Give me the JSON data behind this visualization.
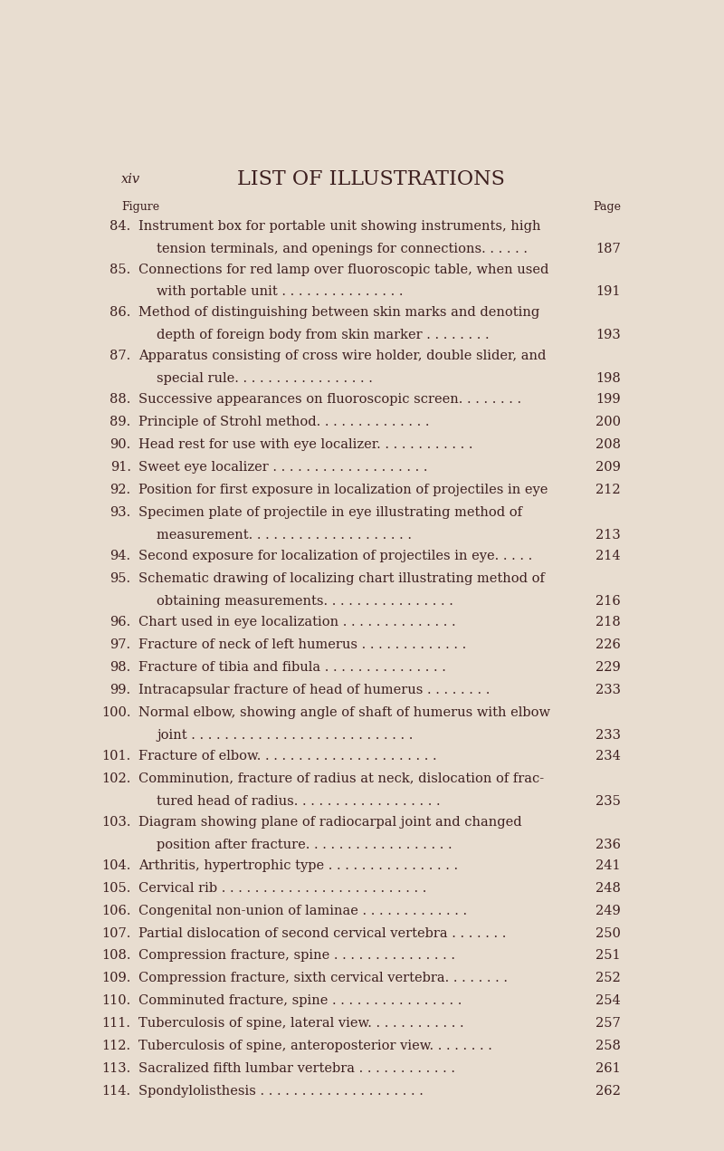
{
  "bg_color": "#e8ddd0",
  "text_color": "#3d1f1f",
  "page_width": 8.0,
  "page_height": 12.71,
  "title": "LIST OF ILLUSTRATIONS",
  "xiv_label": "xiv",
  "header_figure": "Figure",
  "header_page": "Page",
  "entries": [
    {
      "num": "84.",
      "multiline": true,
      "line1": "Instrument box for portable unit showing instruments, high",
      "line2": "tension terminals, and openings for connections.",
      "dots2": ". . . . .",
      "page": 187
    },
    {
      "num": "85.",
      "multiline": true,
      "line1": "Connections for red lamp over fluoroscopic table, when used",
      "line2": "with portable unit",
      "dots2": ". . . . . . . . . . . . . . .",
      "page": 191
    },
    {
      "num": "86.",
      "multiline": true,
      "line1": "Method of distinguishing between skin marks and denoting",
      "line2": "depth of foreign body from skin marker",
      "dots2": ". . . . . . . .",
      "page": 193
    },
    {
      "num": "87.",
      "multiline": true,
      "line1": "Apparatus consisting of cross wire holder, double slider, and",
      "line2": "special rule.",
      "dots2": ". . . . . . . . . . . . . . . .",
      "page": 198
    },
    {
      "num": "88.",
      "multiline": false,
      "line1": "Successive appearances on fluoroscopic screen.",
      "dots1": ". . . . . . .",
      "page": 199
    },
    {
      "num": "89.",
      "multiline": false,
      "line1": "Principle of Strohl method.",
      "dots1": ". . . . . . . . . . . . .",
      "page": 200
    },
    {
      "num": "90.",
      "multiline": false,
      "line1": "Head rest for use with eye localizer.",
      "dots1": ". . . . . . . . . . .",
      "page": 208
    },
    {
      "num": "91.",
      "multiline": false,
      "line1": "Sweet eye localizer",
      "dots1": ". . . . . . . . . . . . . . . . . . .",
      "page": 209
    },
    {
      "num": "92.",
      "multiline": false,
      "line1": "Position for first exposure in localization of projectiles in eye",
      "dots1": "",
      "page": 212
    },
    {
      "num": "93.",
      "multiline": true,
      "line1": "Specimen plate of projectile in eye illustrating method of",
      "line2": "measurement.",
      "dots2": ". . . . . . . . . . . . . . . . . . .",
      "page": 213
    },
    {
      "num": "94.",
      "multiline": false,
      "line1": "Second exposure for localization of projectiles in eye.",
      "dots1": ". . . .",
      "page": 214
    },
    {
      "num": "95.",
      "multiline": true,
      "line1": "Schematic drawing of localizing chart illustrating method of",
      "line2": "obtaining measurements.",
      "dots2": ". . . . . . . . . . . . . . .",
      "page": 216
    },
    {
      "num": "96.",
      "multiline": false,
      "line1": "Chart used in eye localization",
      "dots1": ". . . . . . . . . . . . . .",
      "page": 218
    },
    {
      "num": "97.",
      "multiline": false,
      "line1": "Fracture of neck of left humerus",
      "dots1": ". . . . . . . . . . . . .",
      "page": 226
    },
    {
      "num": "98.",
      "multiline": false,
      "line1": "Fracture of tibia and fibula",
      "dots1": ". . . . . . . . . . . . . . .",
      "page": 229
    },
    {
      "num": "99.",
      "multiline": false,
      "line1": "Intracapsular fracture of head of humerus",
      "dots1": ". . . . . . . .",
      "page": 233
    },
    {
      "num": "100.",
      "multiline": true,
      "line1": "Normal elbow, showing angle of shaft of humerus with elbow",
      "line2": "joint",
      "dots2": ". . . . . . . . . . . . . . . . . . . . . . . . . . .",
      "page": 233
    },
    {
      "num": "101.",
      "multiline": false,
      "line1": "Fracture of elbow.",
      "dots1": ". . . . . . . . . . . . . . . . . . . . .",
      "page": 234
    },
    {
      "num": "102.",
      "multiline": true,
      "line1": "Comminution, fracture of radius at neck, dislocation of frac-",
      "line2": "tured head of radius.",
      "dots2": ". . . . . . . . . . . . . . . . .",
      "page": 235
    },
    {
      "num": "103.",
      "multiline": true,
      "line1": "Diagram showing plane of radiocarpal joint and changed",
      "line2": "position after fracture.",
      "dots2": ". . . . . . . . . . . . . . . . .",
      "page": 236
    },
    {
      "num": "104.",
      "multiline": false,
      "line1": "Arthritis, hypertrophic type",
      "dots1": ". . . . . . . . . . . . . . . .",
      "page": 241
    },
    {
      "num": "105.",
      "multiline": false,
      "line1": "Cervical rib",
      "dots1": ". . . . . . . . . . . . . . . . . . . . . . . . .",
      "page": 248
    },
    {
      "num": "106.",
      "multiline": false,
      "line1": "Congenital non-union of laminae",
      "dots1": ". . . . . . . . . . . . .",
      "page": 249
    },
    {
      "num": "107.",
      "multiline": false,
      "line1": "Partial dislocation of second cervical vertebra",
      "dots1": ". . . . . . .",
      "page": 250
    },
    {
      "num": "108.",
      "multiline": false,
      "line1": "Compression fracture, spine",
      "dots1": ". . . . . . . . . . . . . . .",
      "page": 251
    },
    {
      "num": "109.",
      "multiline": false,
      "line1": "Compression fracture, sixth cervical vertebra.",
      "dots1": ". . . . . . .",
      "page": 252
    },
    {
      "num": "110.",
      "multiline": false,
      "line1": "Comminuted fracture, spine",
      "dots1": ". . . . . . . . . . . . . . . .",
      "page": 254
    },
    {
      "num": "111.",
      "multiline": false,
      "line1": "Tuberculosis of spine, lateral view.",
      "dots1": ". . . . . . . . . . .",
      "page": 257
    },
    {
      "num": "112.",
      "multiline": false,
      "line1": "Tuberculosis of spine, anteroposterior view.",
      "dots1": ". . . . . . .",
      "page": 258
    },
    {
      "num": "113.",
      "multiline": false,
      "line1": "Sacralized fifth lumbar vertebra",
      "dots1": ". . . . . . . . . . . .",
      "page": 261
    },
    {
      "num": "114.",
      "multiline": false,
      "line1": "Spondylolisthesis",
      "dots1": ". . . . . . . . . . . . . . . . . . . .",
      "page": 262
    }
  ]
}
